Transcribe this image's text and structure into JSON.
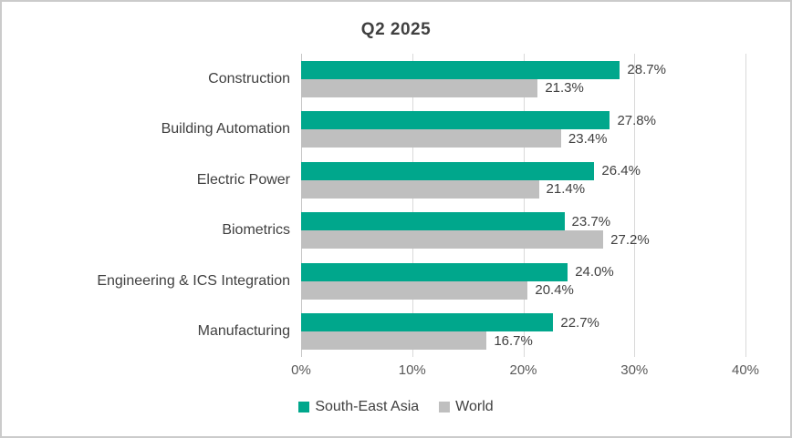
{
  "chart_data": {
    "type": "bar",
    "orientation": "horizontal",
    "title": "Q2 2025",
    "categories": [
      "Construction",
      "Building Automation",
      "Electric Power",
      "Biometrics",
      "Engineering & ICS Integration",
      "Manufacturing"
    ],
    "series": [
      {
        "name": "South-East Asia",
        "color": "#00A78C",
        "values": [
          28.7,
          27.8,
          26.4,
          23.7,
          24.0,
          22.7
        ]
      },
      {
        "name": "World",
        "color": "#BFBFBF",
        "values": [
          21.3,
          23.4,
          21.4,
          27.2,
          20.4,
          16.7
        ]
      }
    ],
    "data_labels": [
      [
        "28.7%",
        "27.8%",
        "26.4%",
        "23.7%",
        "24.0%",
        "22.7%"
      ],
      [
        "21.3%",
        "23.4%",
        "21.4%",
        "27.2%",
        "20.4%",
        "16.7%"
      ]
    ],
    "xlim": [
      0,
      40
    ],
    "x_ticks": [
      "0%",
      "10%",
      "20%",
      "30%",
      "40%"
    ],
    "x_tick_values": [
      0,
      10,
      20,
      30,
      40
    ],
    "grid": "vertical",
    "legend_position": "bottom"
  },
  "colors": {
    "gridline": "#D9D9D9",
    "axis_line": "#C6C6C6",
    "title_text": "#404040",
    "category_text": "#404040",
    "data_label_text": "#404040",
    "tick_text": "#595959",
    "frame_border": "#CBCBCB",
    "background": "#FFFFFF"
  }
}
